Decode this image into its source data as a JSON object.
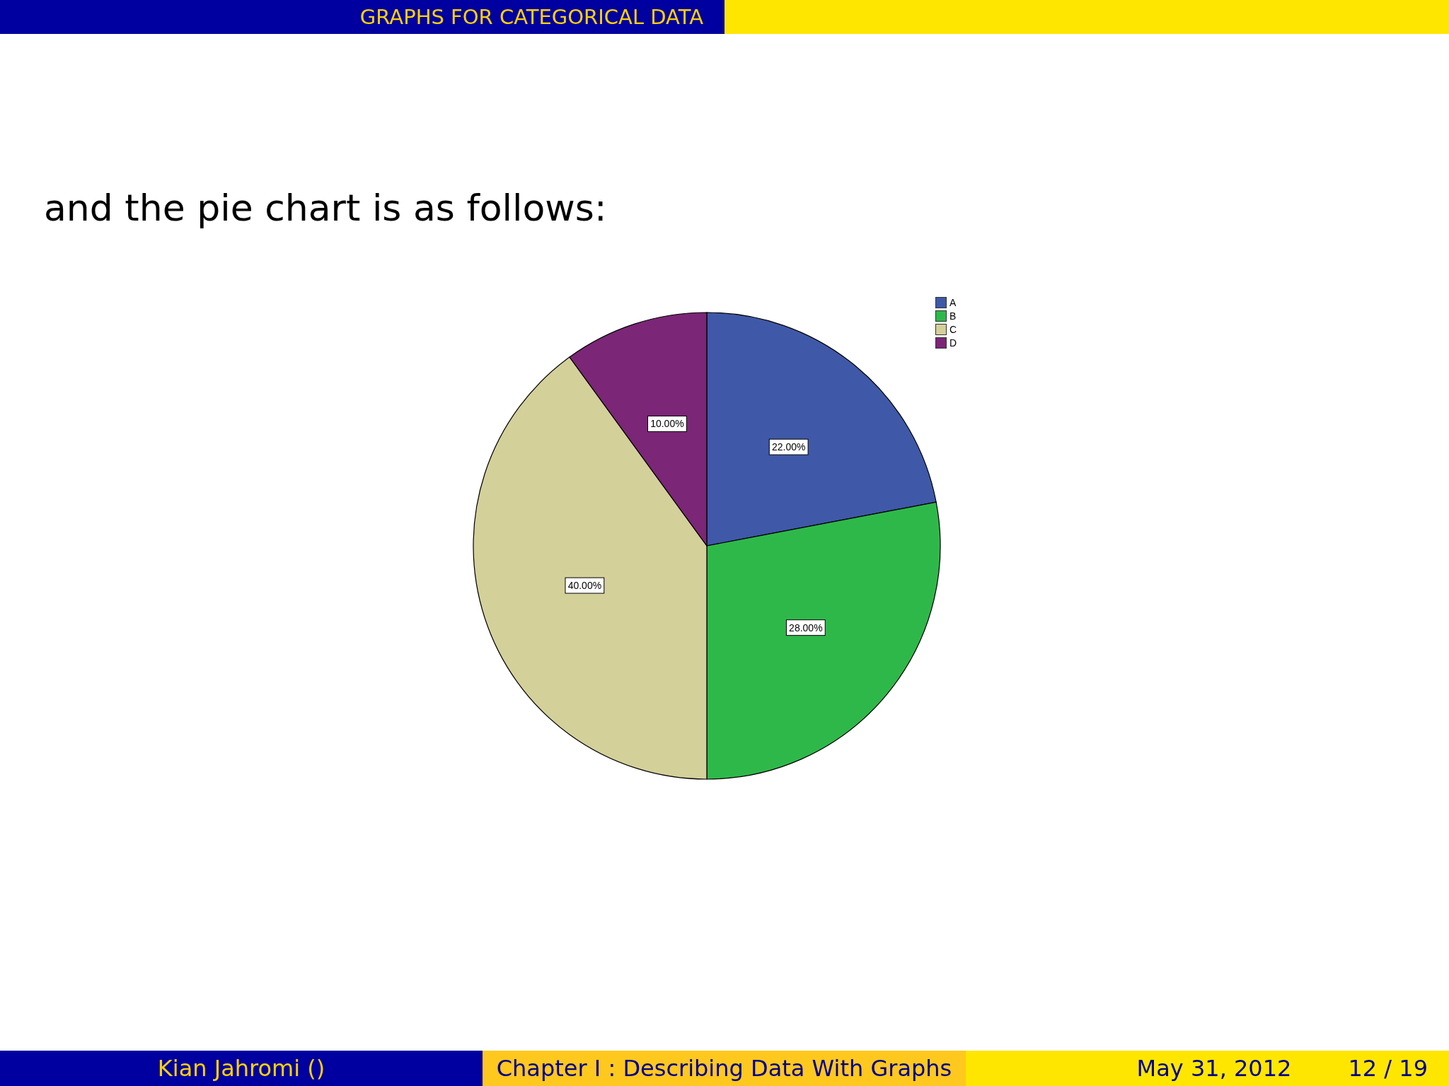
{
  "chart_data": {
    "type": "pie",
    "title": "GRAPHS FOR CATEGORICAL DATA",
    "subtitle": "and the pie chart is as follows:",
    "categories": [
      "A",
      "B",
      "C",
      "D"
    ],
    "values": [
      22,
      28,
      40,
      10
    ],
    "colors": [
      "#3f58a8",
      "#2fb84a",
      "#d3d09a",
      "#7b2677"
    ],
    "value_labels": [
      "22.00%",
      "28.00%",
      "40.00%",
      "10.00%"
    ],
    "legend": "top right",
    "annotations": [
      "Kian Jahromi ()",
      "Chapter I : Describing Data With Graphs",
      "May 31, 2012",
      "12 / 19"
    ]
  }
}
